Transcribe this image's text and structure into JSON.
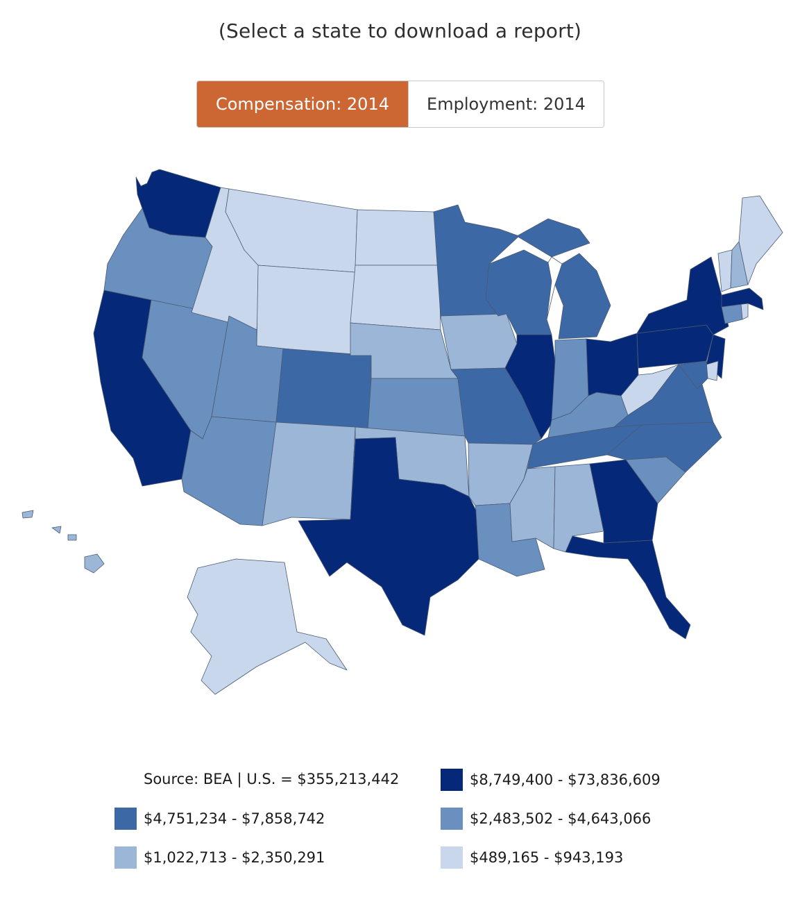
{
  "header": {
    "instruction": "(Select a state to download a report)"
  },
  "toggle": {
    "options": [
      {
        "label": "Compensation: 2014",
        "active": true
      },
      {
        "label": "Employment: 2014",
        "active": false
      }
    ],
    "active_color": "#cc6633"
  },
  "legend": {
    "source": "Source: BEA | U.S. = $355,213,442",
    "bins": [
      {
        "label": "$8,749,400 - $73,836,609",
        "color": "#062878"
      },
      {
        "label": "$4,751,234 - $7,858,742",
        "color": "#3d68a6"
      },
      {
        "label": "$2,483,502 - $4,643,066",
        "color": "#6a90c0"
      },
      {
        "label": "$1,022,713 - $2,350,291",
        "color": "#9bb6d7"
      },
      {
        "label": "$489,165 - $943,193",
        "color": "#c8d7ec"
      }
    ]
  },
  "map": {
    "metric": "Compensation: 2014",
    "states": [
      {
        "id": "WA",
        "bin": 0
      },
      {
        "id": "CA",
        "bin": 0
      },
      {
        "id": "TX",
        "bin": 0
      },
      {
        "id": "IL",
        "bin": 0
      },
      {
        "id": "OH",
        "bin": 0
      },
      {
        "id": "PA",
        "bin": 0
      },
      {
        "id": "NY",
        "bin": 0
      },
      {
        "id": "NJ",
        "bin": 0
      },
      {
        "id": "MA",
        "bin": 0
      },
      {
        "id": "GA",
        "bin": 0
      },
      {
        "id": "FL",
        "bin": 0
      },
      {
        "id": "MN",
        "bin": 1
      },
      {
        "id": "WI",
        "bin": 1
      },
      {
        "id": "MI",
        "bin": 1
      },
      {
        "id": "CO",
        "bin": 1
      },
      {
        "id": "MO",
        "bin": 1
      },
      {
        "id": "TN",
        "bin": 1
      },
      {
        "id": "VA",
        "bin": 1
      },
      {
        "id": "NC",
        "bin": 1
      },
      {
        "id": "MD",
        "bin": 1
      },
      {
        "id": "OR",
        "bin": 2
      },
      {
        "id": "NV",
        "bin": 2
      },
      {
        "id": "UT",
        "bin": 2
      },
      {
        "id": "AZ",
        "bin": 2
      },
      {
        "id": "KS",
        "bin": 2
      },
      {
        "id": "IN",
        "bin": 2
      },
      {
        "id": "KY",
        "bin": 2
      },
      {
        "id": "SC",
        "bin": 2
      },
      {
        "id": "LA",
        "bin": 2
      },
      {
        "id": "CT",
        "bin": 2
      },
      {
        "id": "NE",
        "bin": 3
      },
      {
        "id": "IA",
        "bin": 3
      },
      {
        "id": "NM",
        "bin": 3
      },
      {
        "id": "OK",
        "bin": 3
      },
      {
        "id": "AR",
        "bin": 3
      },
      {
        "id": "MS",
        "bin": 3
      },
      {
        "id": "AL",
        "bin": 3
      },
      {
        "id": "NH",
        "bin": 3
      },
      {
        "id": "HI",
        "bin": 3
      },
      {
        "id": "MT",
        "bin": 4
      },
      {
        "id": "ID",
        "bin": 4
      },
      {
        "id": "WY",
        "bin": 4
      },
      {
        "id": "ND",
        "bin": 4
      },
      {
        "id": "SD",
        "bin": 4
      },
      {
        "id": "WV",
        "bin": 4
      },
      {
        "id": "ME",
        "bin": 4
      },
      {
        "id": "VT",
        "bin": 4
      },
      {
        "id": "RI",
        "bin": 4
      },
      {
        "id": "DE",
        "bin": 4
      },
      {
        "id": "AK",
        "bin": 4
      }
    ]
  }
}
